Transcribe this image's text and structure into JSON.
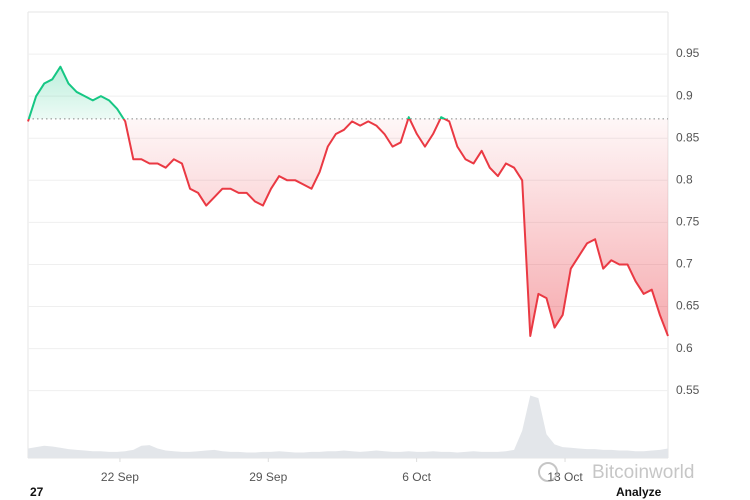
{
  "chart_data": {
    "type": "baseline-line",
    "values": [
      0.87,
      0.9,
      0.915,
      0.92,
      0.935,
      0.915,
      0.905,
      0.9,
      0.895,
      0.9,
      0.895,
      0.885,
      0.87,
      0.825,
      0.825,
      0.82,
      0.82,
      0.815,
      0.825,
      0.82,
      0.79,
      0.785,
      0.77,
      0.78,
      0.79,
      0.79,
      0.785,
      0.785,
      0.775,
      0.77,
      0.79,
      0.805,
      0.8,
      0.8,
      0.795,
      0.79,
      0.81,
      0.84,
      0.855,
      0.86,
      0.87,
      0.865,
      0.87,
      0.865,
      0.855,
      0.84,
      0.845,
      0.875,
      0.855,
      0.84,
      0.855,
      0.875,
      0.87,
      0.84,
      0.825,
      0.82,
      0.835,
      0.815,
      0.805,
      0.82,
      0.815,
      0.8,
      0.615,
      0.665,
      0.66,
      0.625,
      0.64,
      0.695,
      0.71,
      0.725,
      0.73,
      0.695,
      0.705,
      0.7,
      0.7,
      0.68,
      0.665,
      0.67,
      0.64,
      0.615
    ],
    "baseline": 0.873,
    "up_color": "#16c784",
    "down_color": "#ea3943",
    "volume": {
      "color": "#e3e6ea",
      "axis": "y2",
      "values": [
        14,
        16,
        18,
        17,
        15,
        13,
        12,
        11,
        10,
        10,
        9,
        9,
        10,
        12,
        18,
        19,
        14,
        11,
        10,
        9,
        9,
        10,
        11,
        12,
        10,
        9,
        9,
        8,
        8,
        9,
        9,
        10,
        9,
        8,
        8,
        9,
        9,
        10,
        10,
        11,
        10,
        9,
        10,
        11,
        10,
        9,
        9,
        10,
        9,
        9,
        10,
        9,
        9,
        8,
        9,
        10,
        9,
        9,
        9,
        10,
        12,
        40,
        92,
        88,
        35,
        20,
        16,
        15,
        14,
        13,
        13,
        12,
        12,
        11,
        11,
        10,
        10,
        11,
        12,
        14
      ]
    },
    "xlim": [
      0,
      79
    ],
    "xticks": [
      {
        "value": 11.35,
        "label": "22 Sep"
      },
      {
        "value": 29.66,
        "label": "29 Sep"
      },
      {
        "value": 47.97,
        "label": "6 Oct"
      },
      {
        "value": 66.29,
        "label": "13 Oct"
      }
    ],
    "ylim": [
      0.47,
      1.0
    ],
    "yticks": [
      0.55,
      0.6,
      0.65,
      0.7,
      0.75,
      0.8,
      0.85,
      0.9,
      0.95
    ],
    "y2lim": [
      0,
      100
    ],
    "grid": true
  },
  "corner_label": "27",
  "button": "Analyze",
  "watermark": "Bitcoinworld"
}
